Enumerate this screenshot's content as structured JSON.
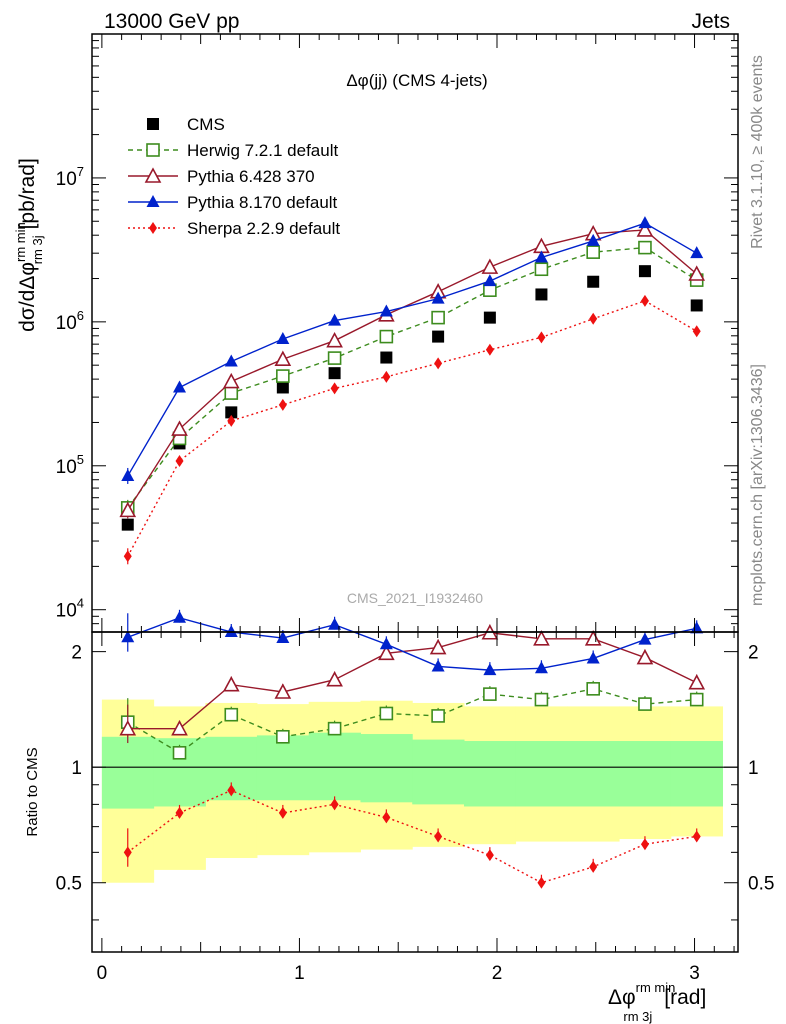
{
  "header": {
    "left": "13000 GeV pp",
    "right": "Jets"
  },
  "side_labels": {
    "rivet": "Rivet 3.1.10, ≥ 400k events",
    "mcplots": "mcplots.cern.ch [arXiv:1306.3436]"
  },
  "chart_data": {
    "type": "scatter",
    "title": "Δφ(jj) (CMS 4-jets)",
    "watermark": "CMS_2021_I1932460",
    "ylabel": "dσ/dΔφ^{rm min}_{rm 3j} [pb/rad]",
    "ylabel_parts": {
      "a": "dσ/dΔφ",
      "sup": "rm min",
      "sub": "rm 3j",
      "b": "[pb/rad]"
    },
    "xlabel_parts": {
      "a": "Δφ",
      "sup": "rm min",
      "sub": "rm 3j",
      "b": "[rad]"
    },
    "ratio_ylabel": "Ratio to CMS",
    "yscale": "log",
    "ylim": [
      7000,
      100000000
    ],
    "xlim": [
      -0.05,
      3.22
    ],
    "ratio_ylim": [
      0.33,
      2.25
    ],
    "x_ticks": [
      "0",
      "1",
      "2",
      "3"
    ],
    "x_tick_values": [
      0,
      1,
      2,
      3
    ],
    "y_ticks": [
      "10^4",
      "10^5",
      "10^6",
      "10^7"
    ],
    "ratio_ticks": [
      "0.5",
      "1",
      "2"
    ],
    "ratio_tick_values": [
      0.5,
      1,
      2
    ],
    "x": [
      0.131,
      0.393,
      0.655,
      0.916,
      1.178,
      1.44,
      1.702,
      1.964,
      2.225,
      2.487,
      2.749,
      3.011
    ],
    "bin_edges": [
      0,
      0.262,
      0.524,
      0.785,
      1.047,
      1.309,
      1.571,
      1.833,
      2.094,
      2.356,
      2.618,
      2.88,
      3.1416
    ],
    "band_green": [
      [
        0.78,
        1.2
      ],
      [
        0.79,
        1.19
      ],
      [
        0.82,
        1.2
      ],
      [
        0.82,
        1.21
      ],
      [
        0.82,
        1.23
      ],
      [
        0.81,
        1.22
      ],
      [
        0.8,
        1.18
      ],
      [
        0.79,
        1.17
      ],
      [
        0.79,
        1.17
      ],
      [
        0.79,
        1.17
      ],
      [
        0.79,
        1.17
      ],
      [
        0.79,
        1.17
      ]
    ],
    "band_yellow": [
      [
        0.5,
        1.5
      ],
      [
        0.54,
        1.44
      ],
      [
        0.58,
        1.47
      ],
      [
        0.59,
        1.46
      ],
      [
        0.6,
        1.48
      ],
      [
        0.61,
        1.49
      ],
      [
        0.62,
        1.47
      ],
      [
        0.63,
        1.44
      ],
      [
        0.64,
        1.44
      ],
      [
        0.64,
        1.44
      ],
      [
        0.65,
        1.44
      ],
      [
        0.66,
        1.44
      ]
    ],
    "series": [
      {
        "name": "CMS",
        "color": "#000000",
        "marker": "square-filled",
        "line": "none",
        "values": [
          39000,
          143000,
          235000,
          350000,
          440000,
          565000,
          790000,
          1070000,
          1550000,
          1900000,
          2250000,
          1300000
        ],
        "ratio": null
      },
      {
        "name": "Herwig 7.2.1 default",
        "color": "#3d8c1e",
        "marker": "square-open",
        "line": "dashed",
        "values": [
          51000,
          155000,
          320000,
          420000,
          560000,
          790000,
          1070000,
          1660000,
          2320000,
          3050000,
          3280000,
          1950000
        ],
        "ratio": [
          1.31,
          1.09,
          1.37,
          1.2,
          1.26,
          1.38,
          1.36,
          1.55,
          1.5,
          1.6,
          1.46,
          1.5
        ]
      },
      {
        "name": "Pythia 6.428 370",
        "color": "#99192b",
        "marker": "triangle-open",
        "line": "solid",
        "values": [
          49000,
          180000,
          385000,
          550000,
          740000,
          1120000,
          1620000,
          2400000,
          3350000,
          4100000,
          4350000,
          2150000
        ],
        "ratio": [
          1.26,
          1.26,
          1.64,
          1.57,
          1.69,
          1.98,
          2.05,
          2.24,
          2.16,
          2.16,
          1.93,
          1.66
        ]
      },
      {
        "name": "Pythia 8.170 default",
        "color": "#0022cc",
        "marker": "triangle-filled",
        "line": "solid",
        "values": [
          85000,
          350000,
          530000,
          760000,
          1020000,
          1180000,
          1450000,
          1920000,
          2800000,
          3650000,
          4850000,
          3000000
        ],
        "ratio": [
          2.18,
          2.45,
          2.25,
          2.17,
          2.35,
          2.09,
          1.83,
          1.79,
          1.81,
          1.92,
          2.15,
          2.3
        ]
      },
      {
        "name": "Sherpa 2.2.9 default",
        "color": "#ee1111",
        "marker": "diamond-filled",
        "line": "dotted",
        "values": [
          23500,
          108000,
          205000,
          265000,
          345000,
          415000,
          515000,
          640000,
          780000,
          1050000,
          1400000,
          860000
        ],
        "ratio": [
          0.6,
          0.76,
          0.87,
          0.76,
          0.8,
          0.74,
          0.66,
          0.59,
          0.5,
          0.55,
          0.63,
          0.66
        ]
      }
    ]
  }
}
